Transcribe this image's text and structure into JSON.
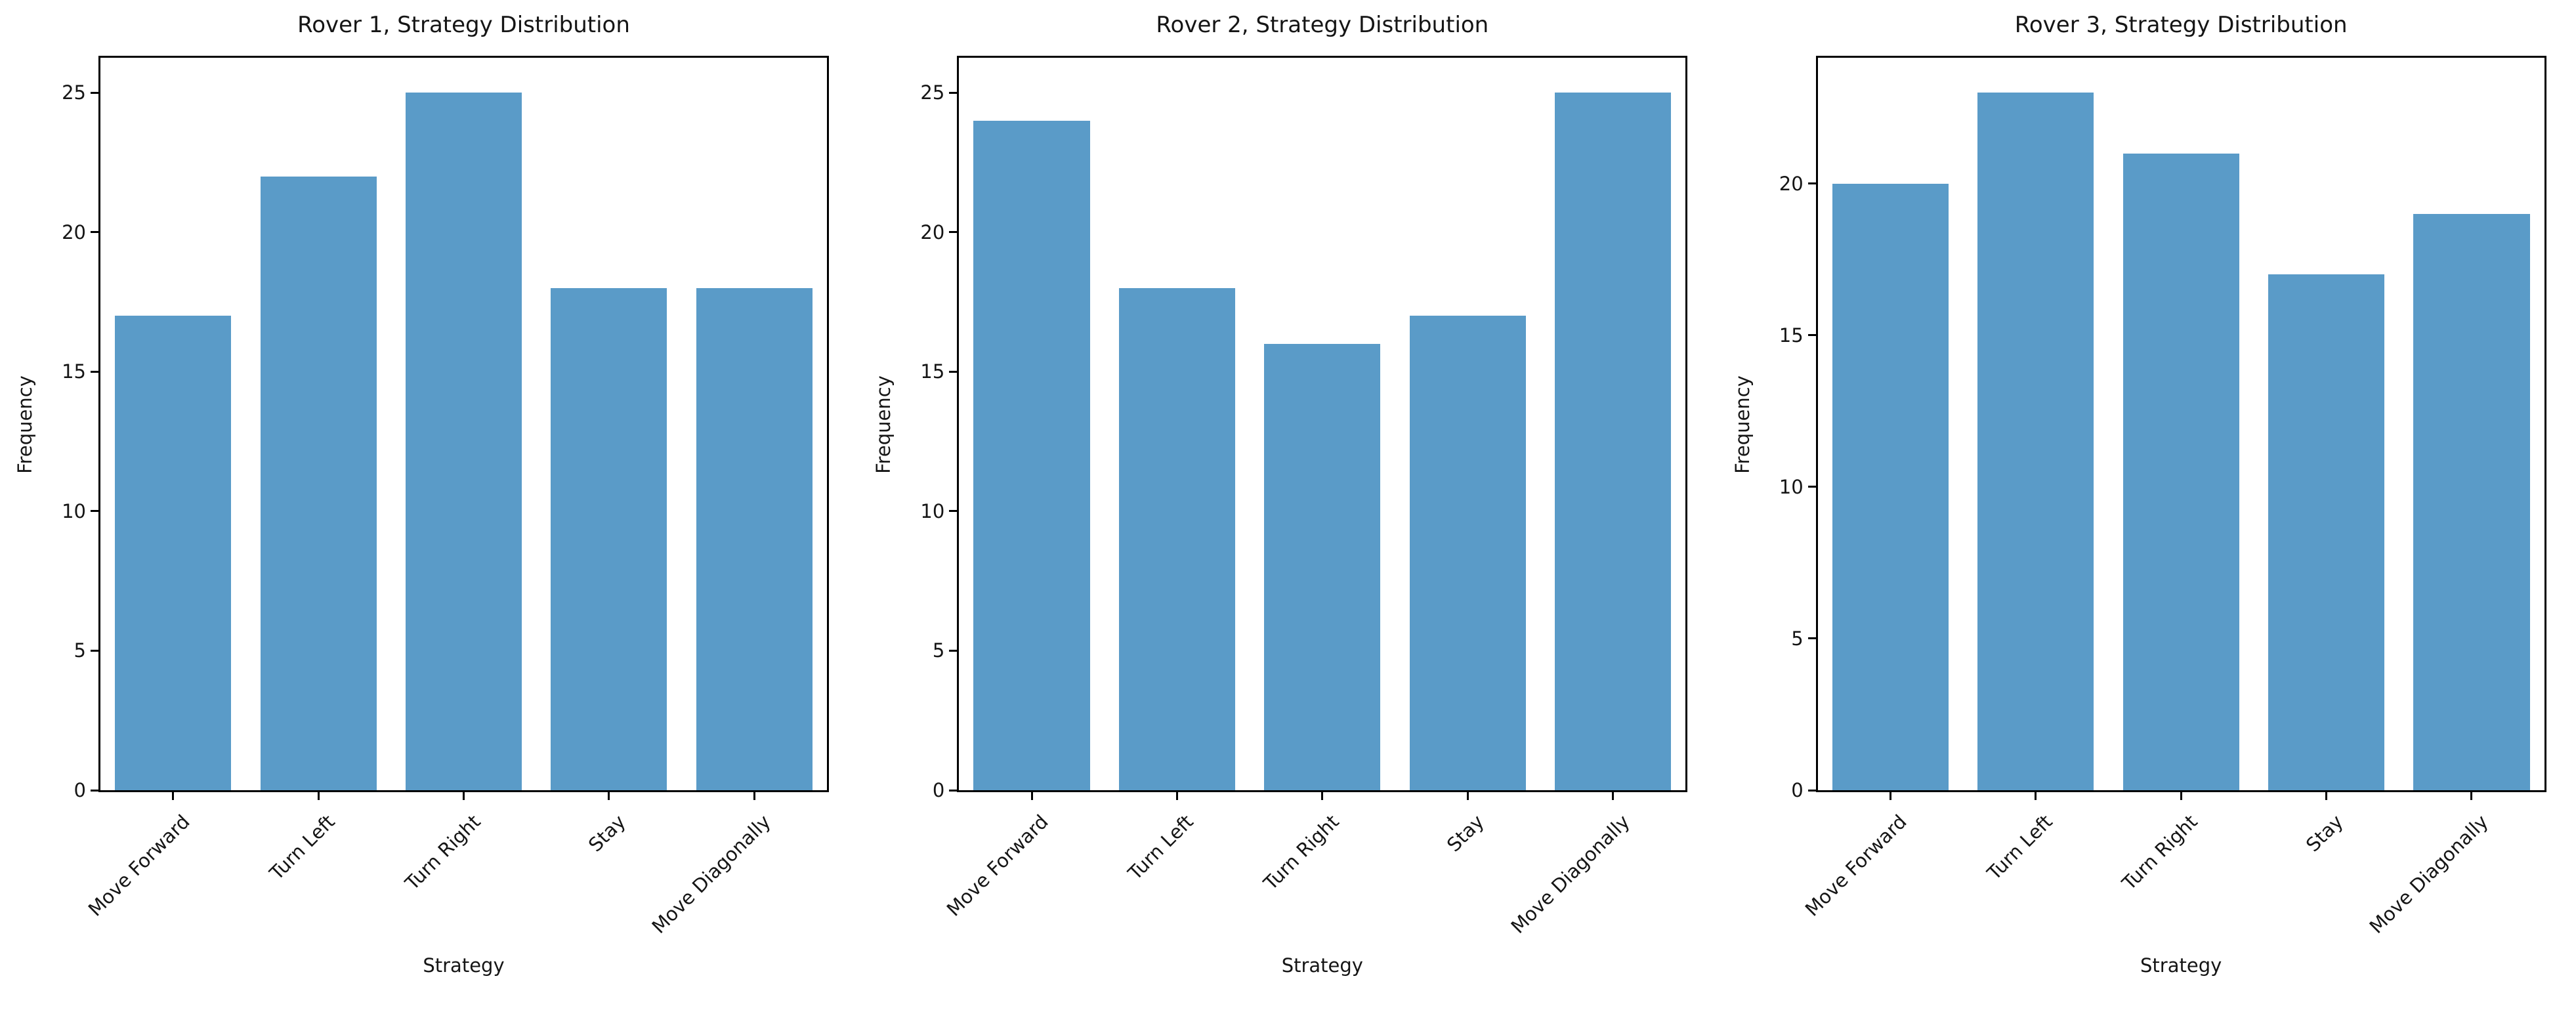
{
  "figure": {
    "background": "#ffffff",
    "text_color": "#151515",
    "spine_color": "#000000"
  },
  "chart_data": [
    {
      "type": "bar",
      "title": "Rover 1, Strategy Distribution",
      "xlabel": "Strategy",
      "ylabel": "Frequency",
      "categories": [
        "Move Forward",
        "Turn Left",
        "Turn Right",
        "Stay",
        "Move Diagonally"
      ],
      "values": [
        17,
        22,
        25,
        18,
        18
      ],
      "yticks": [
        0,
        5,
        10,
        15,
        20,
        25
      ],
      "ylim": [
        0,
        26.25
      ],
      "bar_color": "#5A9BC8",
      "grid": false,
      "legend": "none",
      "x_tick_rotation_deg": 45
    },
    {
      "type": "bar",
      "title": "Rover 2, Strategy Distribution",
      "xlabel": "Strategy",
      "ylabel": "Frequency",
      "categories": [
        "Move Forward",
        "Turn Left",
        "Turn Right",
        "Stay",
        "Move Diagonally"
      ],
      "values": [
        24,
        18,
        16,
        17,
        25
      ],
      "yticks": [
        0,
        5,
        10,
        15,
        20,
        25
      ],
      "ylim": [
        0,
        26.25
      ],
      "bar_color": "#5A9BC8",
      "grid": false,
      "legend": "none",
      "x_tick_rotation_deg": 45
    },
    {
      "type": "bar",
      "title": "Rover 3, Strategy Distribution",
      "xlabel": "Strategy",
      "ylabel": "Frequency",
      "categories": [
        "Move Forward",
        "Turn Left",
        "Turn Right",
        "Stay",
        "Move Diagonally"
      ],
      "values": [
        20,
        23,
        21,
        17,
        19
      ],
      "yticks": [
        0,
        5,
        10,
        15,
        20
      ],
      "ylim": [
        0,
        24.15
      ],
      "bar_color": "#5A9BC8",
      "grid": false,
      "legend": "none",
      "x_tick_rotation_deg": 45
    }
  ]
}
